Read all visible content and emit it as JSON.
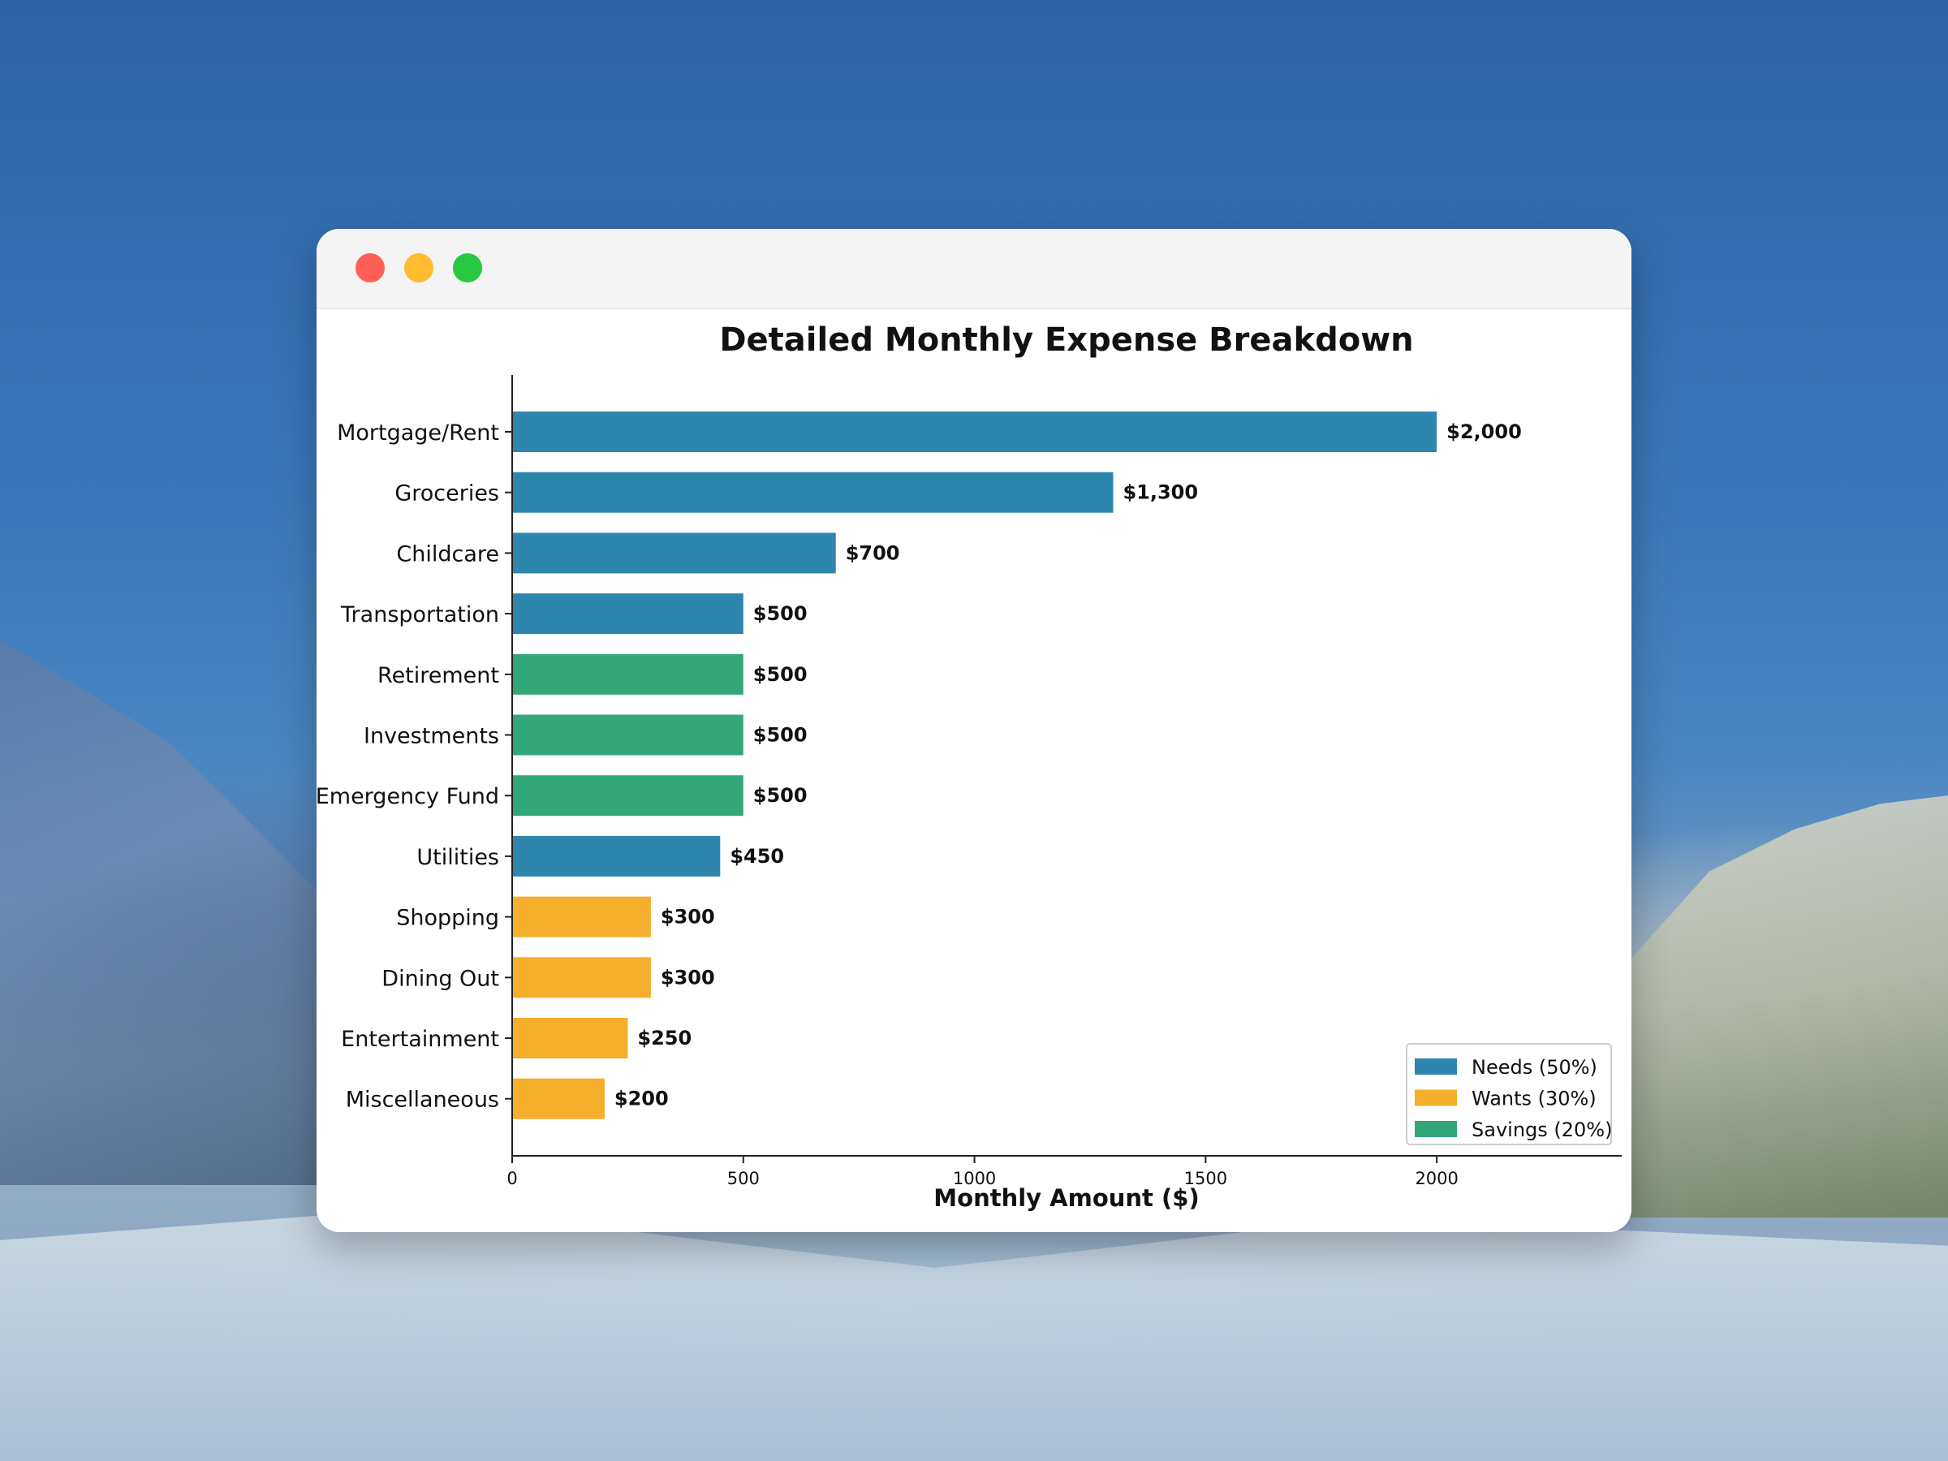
{
  "chart_data": {
    "type": "bar",
    "orientation": "horizontal",
    "title": "Detailed Monthly Expense Breakdown",
    "xlabel": "Monthly Amount ($)",
    "ylabel": "",
    "xlim": [
      0,
      2400
    ],
    "xticks": [
      0,
      500,
      1000,
      1500,
      2000
    ],
    "grid": false,
    "legend_position": "bottom-right",
    "categories": [
      "Mortgage/Rent",
      "Groceries",
      "Childcare",
      "Transportation",
      "Retirement",
      "Investments",
      "Emergency Fund",
      "Utilities",
      "Shopping",
      "Dining Out",
      "Entertainment",
      "Miscellaneous"
    ],
    "values": [
      2000,
      1300,
      700,
      500,
      500,
      500,
      500,
      450,
      300,
      300,
      250,
      200
    ],
    "value_labels": [
      "$2,000",
      "$1,300",
      "$700",
      "$500",
      "$500",
      "$500",
      "$500",
      "$450",
      "$300",
      "$300",
      "$250",
      "$200"
    ],
    "groups": [
      "needs",
      "needs",
      "needs",
      "needs",
      "savings",
      "savings",
      "savings",
      "needs",
      "wants",
      "wants",
      "wants",
      "wants"
    ],
    "legend": [
      {
        "key": "needs",
        "label": "Needs (50%)",
        "color": "#2e86ae"
      },
      {
        "key": "wants",
        "label": "Wants (30%)",
        "color": "#f6ae2d"
      },
      {
        "key": "savings",
        "label": "Savings (20%)",
        "color": "#33a77a"
      }
    ]
  }
}
